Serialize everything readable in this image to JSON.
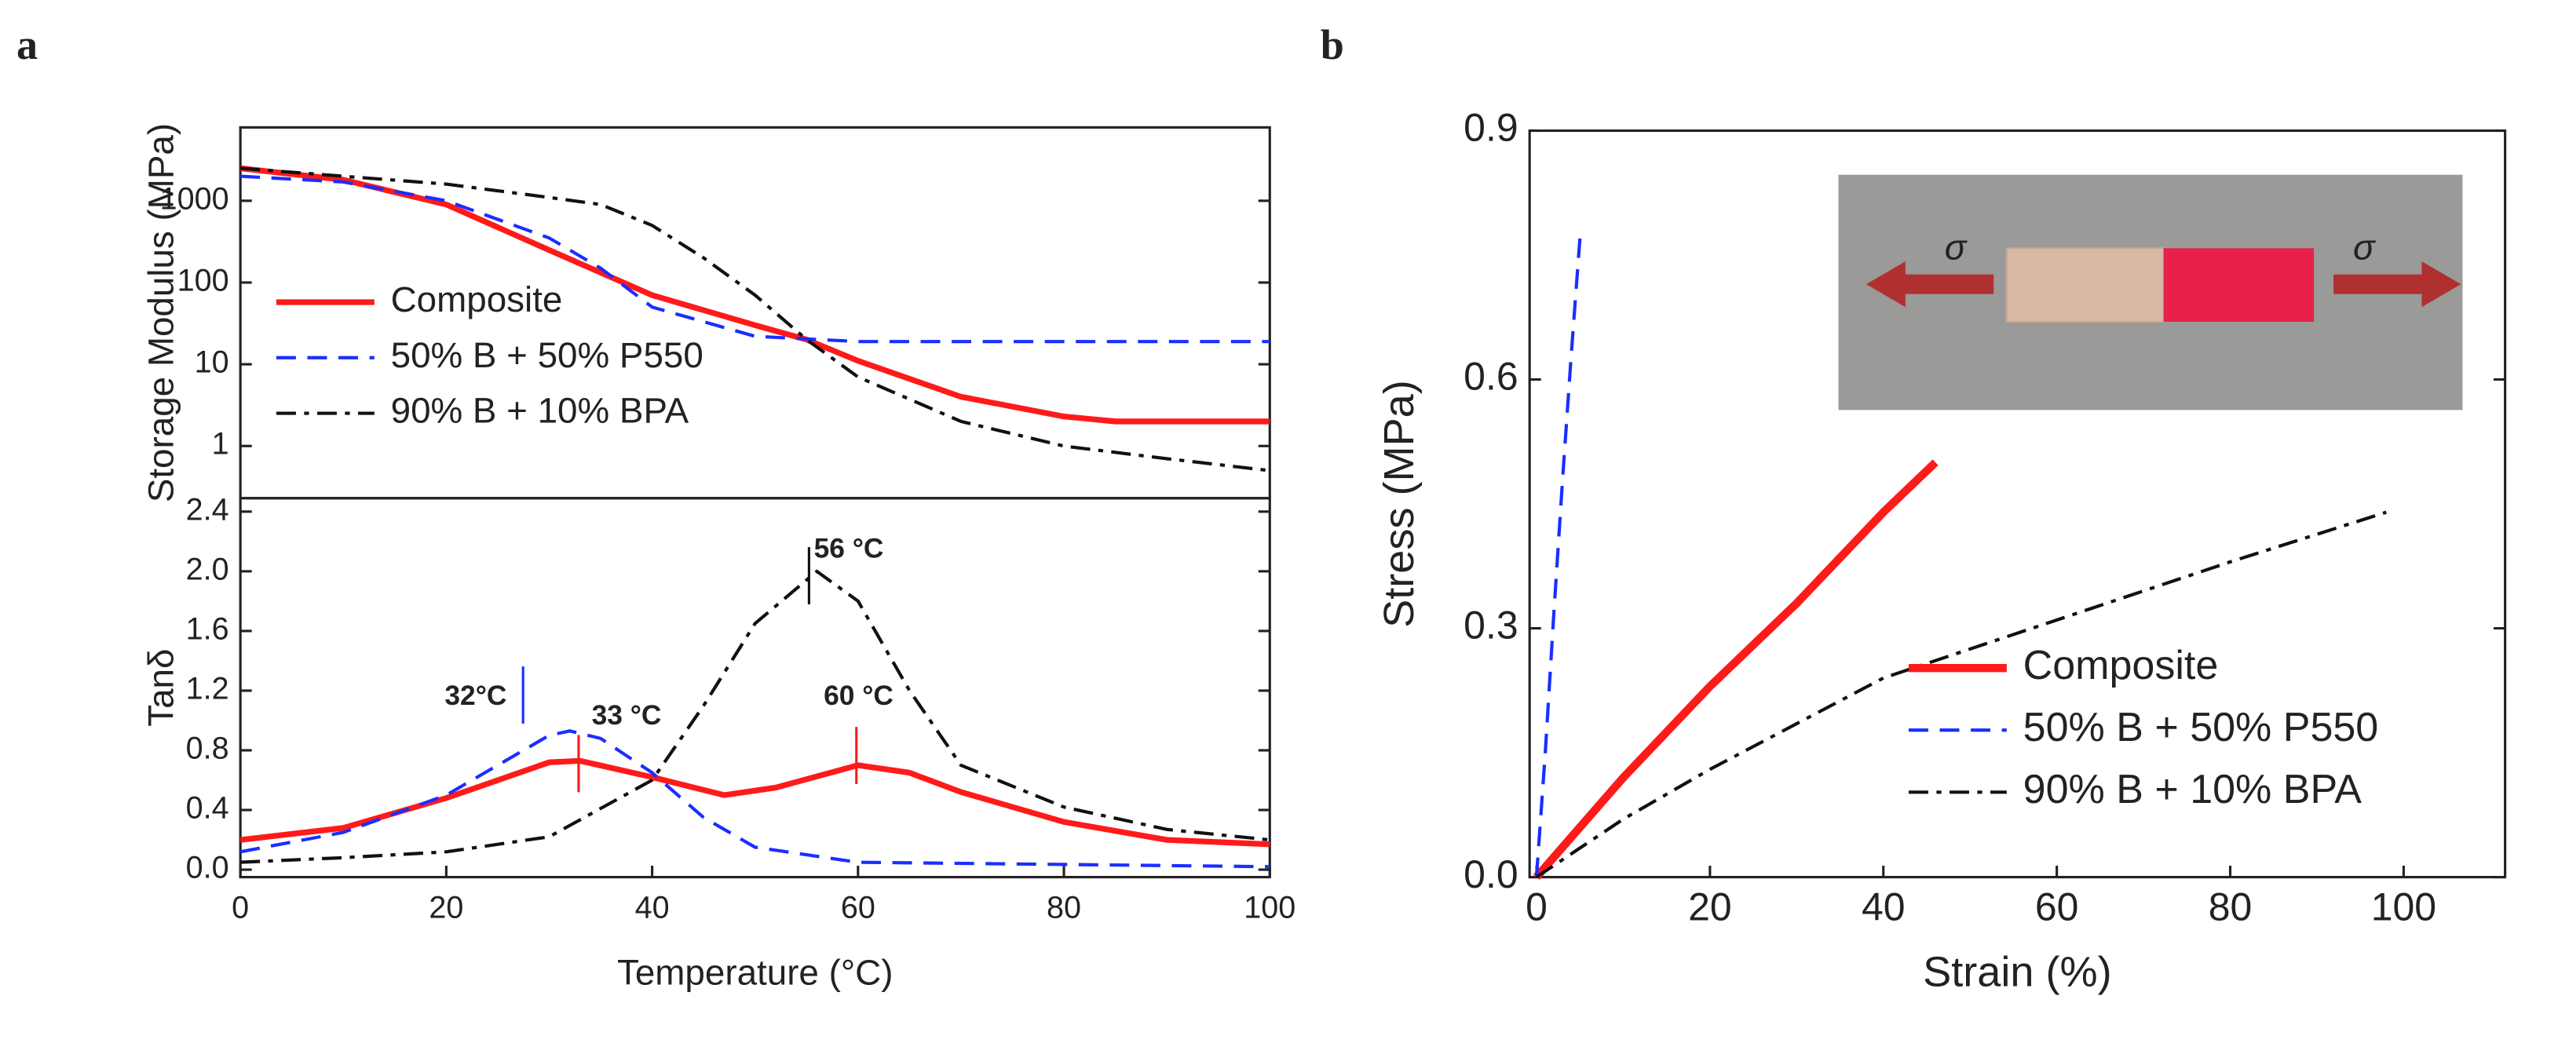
{
  "chart_data": [
    {
      "type": "line",
      "panel": "a",
      "ylabel": "Storage Modulus (MPa)",
      "yscale": "log",
      "xlim": [
        0,
        100
      ],
      "ylim": [
        0.23,
        7900
      ],
      "yticks": [
        1,
        10,
        100,
        1000
      ],
      "legend": "lower left",
      "series": [
        {
          "name": "Composite",
          "color": "#ff1a1a",
          "style": "solid",
          "x": [
            0,
            10,
            20,
            30,
            40,
            50,
            55,
            60,
            70,
            80,
            85,
            90,
            100
          ],
          "values": [
            2500,
            1800,
            900,
            250,
            70,
            30,
            20,
            11,
            4,
            2.3,
            2,
            2,
            2
          ]
        },
        {
          "name": "50% B + 50% P550",
          "color": "#1a2eff",
          "style": "dashed",
          "x": [
            0,
            10,
            20,
            30,
            35,
            40,
            50,
            60,
            100
          ],
          "values": [
            2000,
            1700,
            1000,
            350,
            150,
            50,
            22,
            19,
            19
          ]
        },
        {
          "name": "90% B + 10% BPA",
          "color": "#111111",
          "style": "dashdot",
          "x": [
            0,
            10,
            20,
            30,
            35,
            40,
            45,
            50,
            55,
            60,
            70,
            80,
            90,
            100
          ],
          "values": [
            2500,
            2000,
            1600,
            1100,
            900,
            500,
            200,
            70,
            20,
            7,
            2,
            1,
            0.7,
            0.5
          ]
        }
      ]
    },
    {
      "type": "line",
      "ylabel": "Tanδ",
      "xlabel": "Temperature (°C)",
      "xlim": [
        0,
        100
      ],
      "ylim": [
        -0.05,
        2.49
      ],
      "xticks": [
        0,
        20,
        40,
        60,
        80,
        100
      ],
      "yticks": [
        {
          "value": 0,
          "label": "0.0"
        },
        0.4,
        0.8,
        1.2,
        1.6,
        {
          "value": 2,
          "label": "2.0"
        },
        2.4
      ],
      "annotations": [
        {
          "text": "32°C",
          "color": "#1a2eff"
        },
        {
          "text": "33 °C",
          "color": "#ff1a1a"
        },
        {
          "text": "56 °C",
          "color": "#111111"
        },
        {
          "text": "60 °C",
          "color": "#ff1a1a"
        }
      ],
      "series": [
        {
          "color": "#ff1a1a",
          "style": "solid",
          "x": [
            0,
            10,
            20,
            30,
            33,
            40,
            47,
            52,
            60,
            65,
            70,
            80,
            90,
            100
          ],
          "values": [
            0.2,
            0.28,
            0.48,
            0.72,
            0.73,
            0.62,
            0.5,
            0.55,
            0.7,
            0.65,
            0.52,
            0.32,
            0.2,
            0.17
          ]
        },
        {
          "color": "#1a2eff",
          "style": "dashed",
          "x": [
            0,
            10,
            20,
            30,
            32,
            35,
            40,
            45,
            50,
            60,
            100
          ],
          "values": [
            0.12,
            0.25,
            0.5,
            0.9,
            0.93,
            0.88,
            0.65,
            0.35,
            0.15,
            0.05,
            0.02
          ]
        },
        {
          "color": "#111111",
          "style": "dashdot",
          "x": [
            0,
            10,
            20,
            30,
            40,
            45,
            50,
            56,
            60,
            65,
            70,
            80,
            90,
            100
          ],
          "values": [
            0.05,
            0.08,
            0.12,
            0.22,
            0.6,
            1.1,
            1.65,
            2.0,
            1.8,
            1.2,
            0.7,
            0.42,
            0.27,
            0.2
          ]
        }
      ]
    },
    {
      "type": "line",
      "panel": "b",
      "xlabel": "Strain (%)",
      "ylabel": "Stress (MPa)",
      "xlim": [
        -0.8,
        111.7
      ],
      "ylim": [
        0,
        0.9
      ],
      "xticks": [
        0,
        20,
        40,
        60,
        80,
        100
      ],
      "yticks": [
        {
          "value": 0,
          "label": "0.0"
        },
        0.3,
        0.6,
        0.9
      ],
      "legend": "lower right",
      "inset_labels": [
        "σ",
        "σ"
      ],
      "series": [
        {
          "name": "Composite",
          "color": "#ff1a1a",
          "style": "solid",
          "x": [
            0,
            5,
            10,
            20,
            30,
            40,
            46
          ],
          "values": [
            0,
            0.06,
            0.12,
            0.23,
            0.33,
            0.44,
            0.5
          ]
        },
        {
          "name": "50% B + 50% P550",
          "color": "#1a2eff",
          "style": "dashed",
          "x": [
            0,
            1,
            2,
            3,
            4,
            5
          ],
          "values": [
            0,
            0.15,
            0.32,
            0.48,
            0.63,
            0.77
          ]
        },
        {
          "name": "90% B + 10% BPA",
          "color": "#111111",
          "style": "dashdot",
          "x": [
            0,
            10,
            20,
            40,
            60,
            80,
            98
          ],
          "values": [
            0,
            0.07,
            0.13,
            0.24,
            0.31,
            0.38,
            0.44
          ]
        }
      ]
    }
  ]
}
